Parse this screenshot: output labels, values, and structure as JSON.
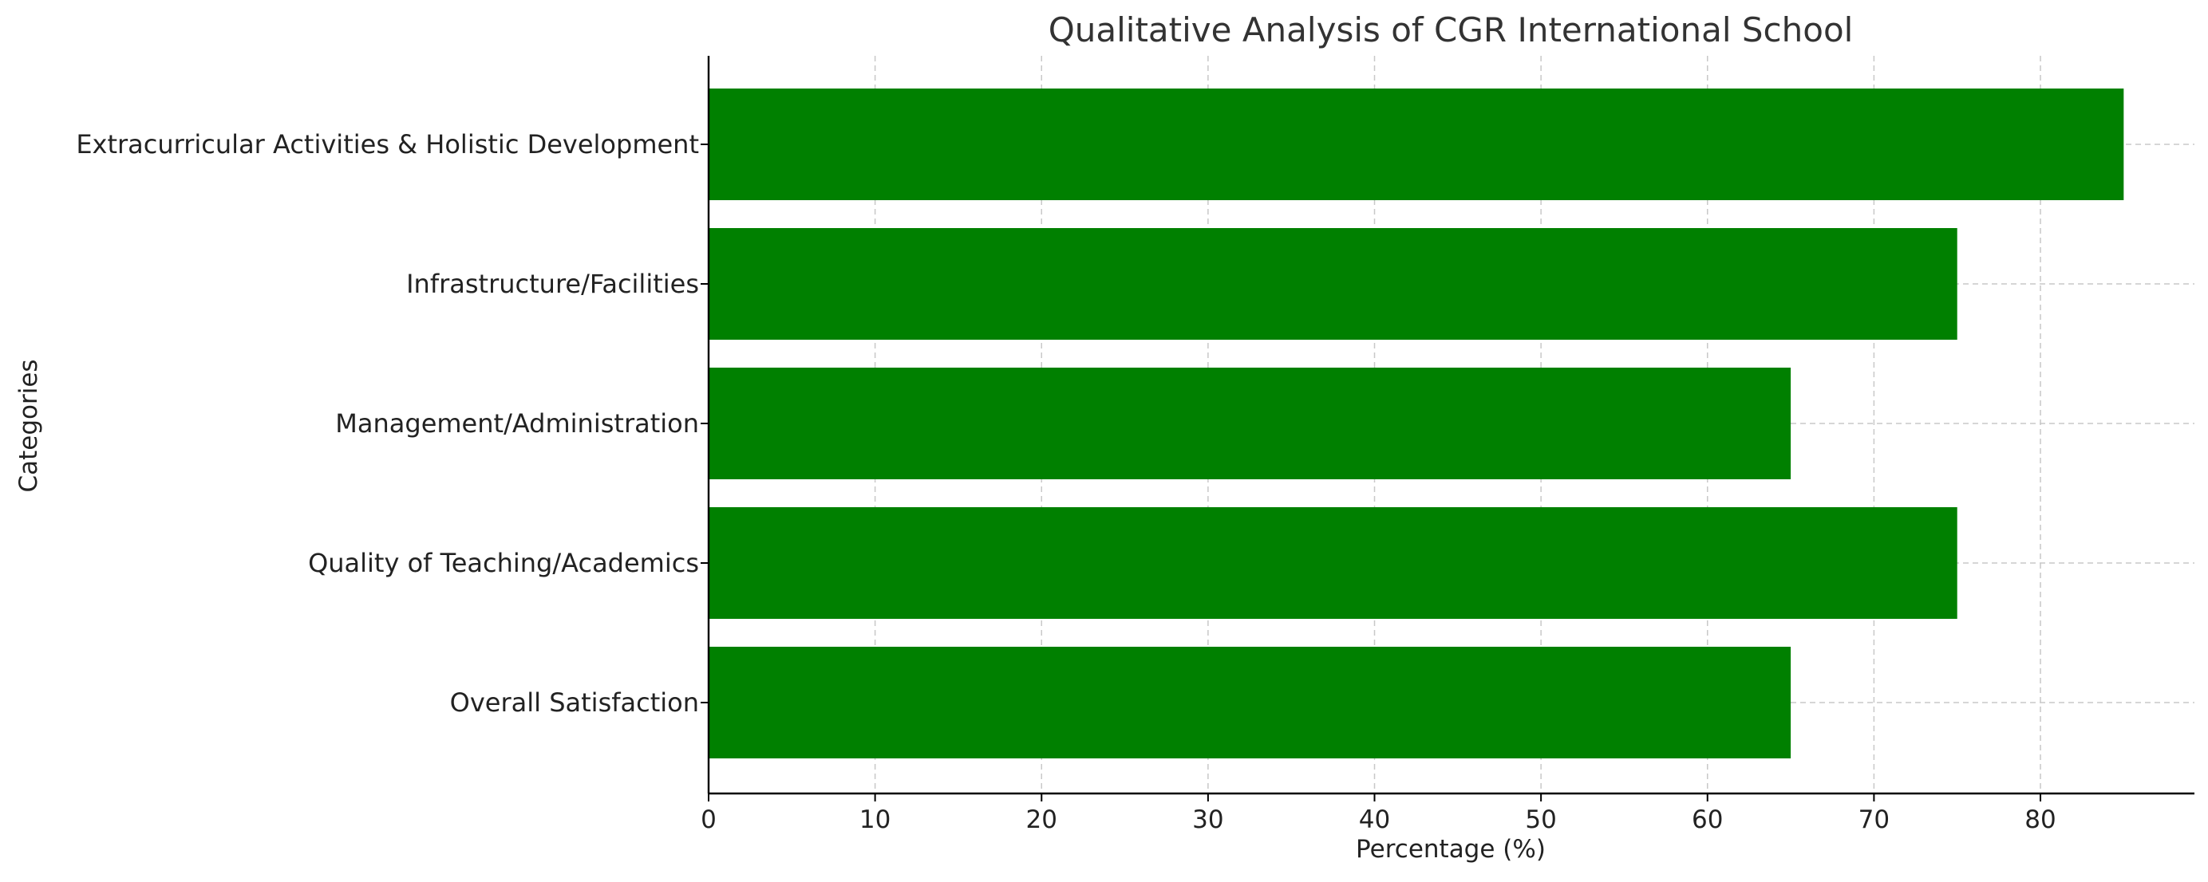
{
  "chart_data": {
    "type": "bar",
    "orientation": "horizontal",
    "title": "Qualitative Analysis of CGR International School",
    "xlabel": "Percentage (%)",
    "ylabel": "Categories",
    "categories": [
      "Overall Satisfaction",
      "Quality of Teaching/Academics",
      "Management/Administration",
      "Infrastructure/Facilities",
      "Extracurricular Activities & Holistic Development"
    ],
    "values": [
      65,
      75,
      65,
      75,
      85
    ],
    "xlim": [
      0,
      89.25
    ],
    "xticks": [
      0,
      10,
      20,
      30,
      40,
      50,
      60,
      70,
      80
    ],
    "grid": true,
    "bar_color": "#008000"
  }
}
